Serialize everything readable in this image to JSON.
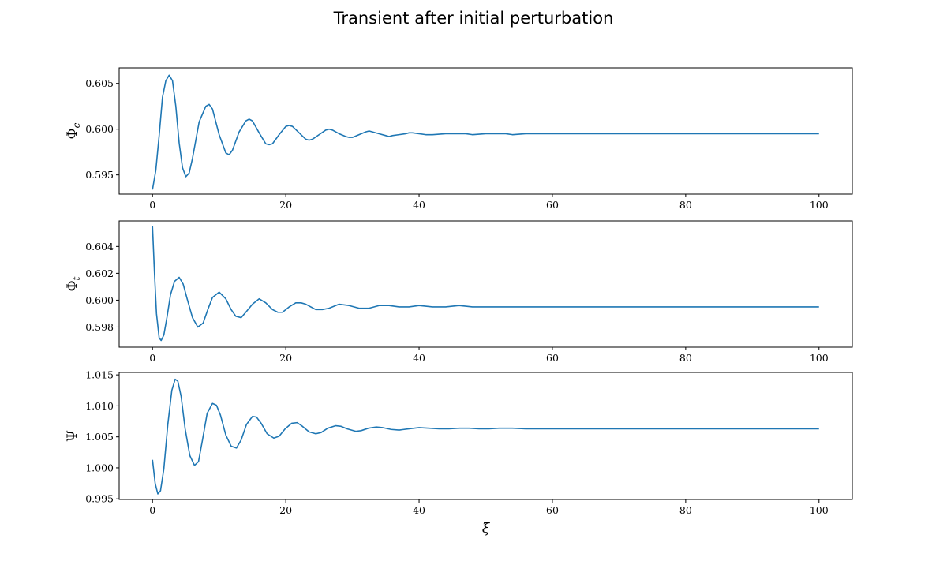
{
  "figure": {
    "title": "Transient after initial perturbation"
  },
  "colors": {
    "line": "#1f77b4",
    "axes": "#000000",
    "background": "#ffffff"
  },
  "chart_data": [
    {
      "type": "line",
      "title": "",
      "xlabel": "",
      "ylabel": "Φc",
      "ylabel_main": "Φ",
      "ylabel_sub": "c",
      "xlim": [
        -5,
        105
      ],
      "ylim": [
        0.5929,
        0.6067
      ],
      "xticks": [
        0,
        20,
        40,
        60,
        80,
        100
      ],
      "yticks": [
        0.595,
        0.6,
        0.605
      ],
      "ytick_labels": [
        "0.595",
        "0.600",
        "0.605"
      ],
      "grid": false,
      "series": [
        {
          "x": [
            0,
            0.5,
            1,
            1.5,
            2,
            2.5,
            3,
            3.5,
            4,
            4.5,
            5,
            5.5,
            6,
            7,
            8,
            8.5,
            9,
            10,
            11,
            11.5,
            12,
            13,
            14,
            14.5,
            15,
            16,
            17,
            17.5,
            18,
            19,
            20,
            20.5,
            21,
            22,
            23,
            23.5,
            24,
            25,
            26,
            26.5,
            27,
            28,
            29,
            29.5,
            30,
            31,
            32,
            32.5,
            33,
            34,
            35,
            35.5,
            36,
            37,
            38,
            38.5,
            39,
            40,
            41,
            41.5,
            42,
            44,
            45,
            47,
            48,
            50,
            51,
            53,
            54,
            56,
            57,
            60,
            65,
            70,
            80,
            90,
            100
          ],
          "y": [
            0.5934,
            0.5955,
            0.5993,
            0.6035,
            0.6053,
            0.6059,
            0.6053,
            0.6025,
            0.5985,
            0.5958,
            0.5948,
            0.5952,
            0.5968,
            0.6008,
            0.6025,
            0.6027,
            0.6022,
            0.5994,
            0.5974,
            0.5972,
            0.5977,
            0.5997,
            0.6009,
            0.6011,
            0.6009,
            0.5996,
            0.5984,
            0.5983,
            0.5984,
            0.5994,
            0.6003,
            0.6004,
            0.6003,
            0.5996,
            0.5989,
            0.5988,
            0.5989,
            0.5994,
            0.5999,
            0.6,
            0.5999,
            0.5995,
            0.5992,
            0.5991,
            0.5991,
            0.5994,
            0.5997,
            0.5998,
            0.5997,
            0.5995,
            0.5993,
            0.5992,
            0.5993,
            0.5994,
            0.5995,
            0.5996,
            0.5996,
            0.5995,
            0.5994,
            0.5994,
            0.5994,
            0.5995,
            0.5995,
            0.5995,
            0.5994,
            0.5995,
            0.5995,
            0.5995,
            0.5994,
            0.5995,
            0.5995,
            0.5995,
            0.5995,
            0.5995,
            0.5995,
            0.5995,
            0.5995
          ]
        }
      ]
    },
    {
      "type": "line",
      "title": "",
      "xlabel": "",
      "ylabel": "Φt",
      "ylabel_main": "Φ",
      "ylabel_sub": "t",
      "xlim": [
        -5,
        105
      ],
      "ylim": [
        0.5965,
        0.6059
      ],
      "xticks": [
        0,
        20,
        40,
        60,
        80,
        100
      ],
      "yticks": [
        0.598,
        0.6,
        0.602,
        0.604
      ],
      "ytick_labels": [
        "0.598",
        "0.600",
        "0.602",
        "0.604"
      ],
      "grid": false,
      "series": [
        {
          "x": [
            0,
            0.3,
            0.6,
            1,
            1.3,
            1.7,
            2.2,
            2.7,
            3.3,
            4,
            4.6,
            5.2,
            6,
            6.8,
            7.6,
            8.3,
            9,
            10,
            11,
            11.8,
            12.5,
            13.3,
            14,
            15,
            16,
            17,
            18,
            18.8,
            19.5,
            20.5,
            21.5,
            22.3,
            23,
            24.5,
            25.5,
            26.5,
            28,
            29.5,
            31,
            32.5,
            34,
            35.5,
            37,
            38.5,
            40,
            42,
            44,
            46,
            48,
            50,
            52,
            54,
            56,
            58,
            60,
            65,
            70,
            80,
            90,
            100
          ],
          "y": [
            0.6055,
            0.602,
            0.599,
            0.5972,
            0.597,
            0.5974,
            0.5988,
            0.6004,
            0.6014,
            0.6017,
            0.6012,
            0.6001,
            0.5987,
            0.598,
            0.5983,
            0.5993,
            0.6002,
            0.6006,
            0.6001,
            0.5993,
            0.5988,
            0.5987,
            0.5991,
            0.5997,
            0.6001,
            0.5998,
            0.5993,
            0.5991,
            0.5991,
            0.5995,
            0.5998,
            0.5998,
            0.5997,
            0.5993,
            0.5993,
            0.5994,
            0.5997,
            0.5996,
            0.5994,
            0.5994,
            0.5996,
            0.5996,
            0.5995,
            0.5995,
            0.5996,
            0.5995,
            0.5995,
            0.5996,
            0.5995,
            0.5995,
            0.5995,
            0.5995,
            0.5995,
            0.5995,
            0.5995,
            0.5995,
            0.5995,
            0.5995,
            0.5995,
            0.5995
          ]
        }
      ]
    },
    {
      "type": "line",
      "title": "",
      "xlabel": "ξ",
      "ylabel": "Ψ",
      "ylabel_main": "Ψ",
      "ylabel_sub": "",
      "xlim": [
        -5,
        105
      ],
      "ylim": [
        0.9949,
        1.0154
      ],
      "xticks": [
        0,
        20,
        40,
        60,
        80,
        100
      ],
      "xtick_labels": [
        "0",
        "20",
        "40",
        "60",
        "80",
        "100"
      ],
      "yticks": [
        0.995,
        1.0,
        1.005,
        1.01,
        1.015
      ],
      "ytick_labels": [
        "0.995",
        "1.000",
        "1.005",
        "1.010",
        "1.015"
      ],
      "grid": false,
      "series": [
        {
          "x": [
            0,
            0.4,
            0.8,
            1.2,
            1.7,
            2.3,
            2.9,
            3.4,
            3.8,
            4.3,
            4.9,
            5.6,
            6.3,
            6.9,
            7.5,
            8.2,
            9,
            9.6,
            10.2,
            11,
            11.8,
            12.6,
            13.3,
            14.1,
            15,
            15.6,
            16.3,
            17.2,
            18.2,
            19,
            19.9,
            20.9,
            21.7,
            22.5,
            23.5,
            24.5,
            25.3,
            26.3,
            27.5,
            28.3,
            29.2,
            30.5,
            31.3,
            32.4,
            33.6,
            34.5,
            35.8,
            37,
            38.5,
            40,
            41.5,
            43,
            44.5,
            46,
            47.5,
            49,
            50.5,
            52,
            54,
            56,
            58,
            60,
            65,
            70,
            80,
            90,
            100
          ],
          "y": [
            1.0013,
            0.9975,
            0.9958,
            0.9963,
            0.9998,
            1.007,
            1.0125,
            1.0143,
            1.014,
            1.0115,
            1.0063,
            1.002,
            1.0004,
            1.001,
            1.0045,
            1.0088,
            1.0104,
            1.0101,
            1.0085,
            1.0053,
            1.0035,
            1.0032,
            1.0045,
            1.007,
            1.0083,
            1.0082,
            1.0072,
            1.0055,
            1.0048,
            1.0051,
            1.0063,
            1.0072,
            1.0073,
            1.0067,
            1.0058,
            1.0055,
            1.0057,
            1.0064,
            1.0068,
            1.0067,
            1.0063,
            1.0059,
            1.006,
            1.0064,
            1.0066,
            1.0065,
            1.0062,
            1.0061,
            1.0063,
            1.0065,
            1.0064,
            1.0063,
            1.0063,
            1.0064,
            1.0064,
            1.0063,
            1.0063,
            1.0064,
            1.0064,
            1.0063,
            1.0063,
            1.0063,
            1.0063,
            1.0063,
            1.0063,
            1.0063,
            1.0063
          ]
        }
      ]
    }
  ]
}
